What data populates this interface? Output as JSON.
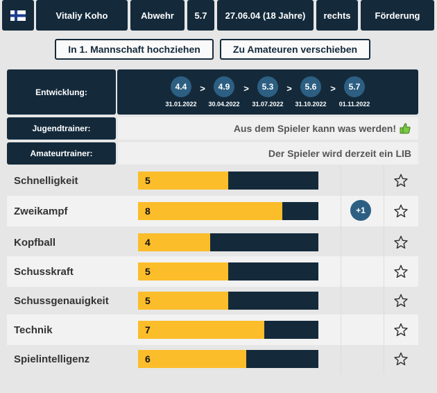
{
  "header": {
    "name": "Vitaliy Koho",
    "position": "Abwehr",
    "rating": "5.7",
    "birthdate": "27.06.04 (18 Jahre)",
    "foot": "rechts",
    "status": "Förderung",
    "flag": "finland-flag-icon"
  },
  "actions": {
    "promote_label": "In 1. Mannschaft hochziehen",
    "amateur_label": "Zu Amateuren verschieben"
  },
  "development": {
    "label": "Entwicklung:",
    "arrow": ">",
    "points": [
      {
        "value": "4.4",
        "date": "31.01.2022"
      },
      {
        "value": "4.9",
        "date": "30.04.2022"
      },
      {
        "value": "5.3",
        "date": "31.07.2022"
      },
      {
        "value": "5.6",
        "date": "31.10.2022"
      },
      {
        "value": "5.7",
        "date": "01.11.2022"
      }
    ]
  },
  "youth_trainer": {
    "label": "Jugendtrainer:",
    "text": "Aus dem Spieler kann was werden!",
    "icon": "thumbs-up-icon"
  },
  "amateur_trainer": {
    "label": "Amateurtrainer:",
    "text": "Der Spieler wird derzeit ein LIB"
  },
  "skill_max": 10,
  "skills": [
    {
      "name": "Schnelligkeit",
      "value": "5",
      "level": 5,
      "increase": ""
    },
    {
      "name": "Zweikampf",
      "value": "8",
      "level": 8,
      "increase": "+1"
    },
    {
      "name": "Kopfball",
      "value": "4",
      "level": 4,
      "increase": ""
    },
    {
      "name": "Schusskraft",
      "value": "5",
      "level": 5,
      "increase": ""
    },
    {
      "name": "Schussgenauigkeit",
      "value": "5",
      "level": 5,
      "increase": ""
    },
    {
      "name": "Technik",
      "value": "7",
      "level": 7,
      "increase": ""
    },
    {
      "name": "Spielintelligenz",
      "value": "6",
      "level": 6,
      "increase": ""
    }
  ],
  "colors": {
    "dark": "#142a3b",
    "accent": "#2d5f83",
    "bar_fill": "#fbbd2a",
    "thumb": "#7ac943"
  }
}
